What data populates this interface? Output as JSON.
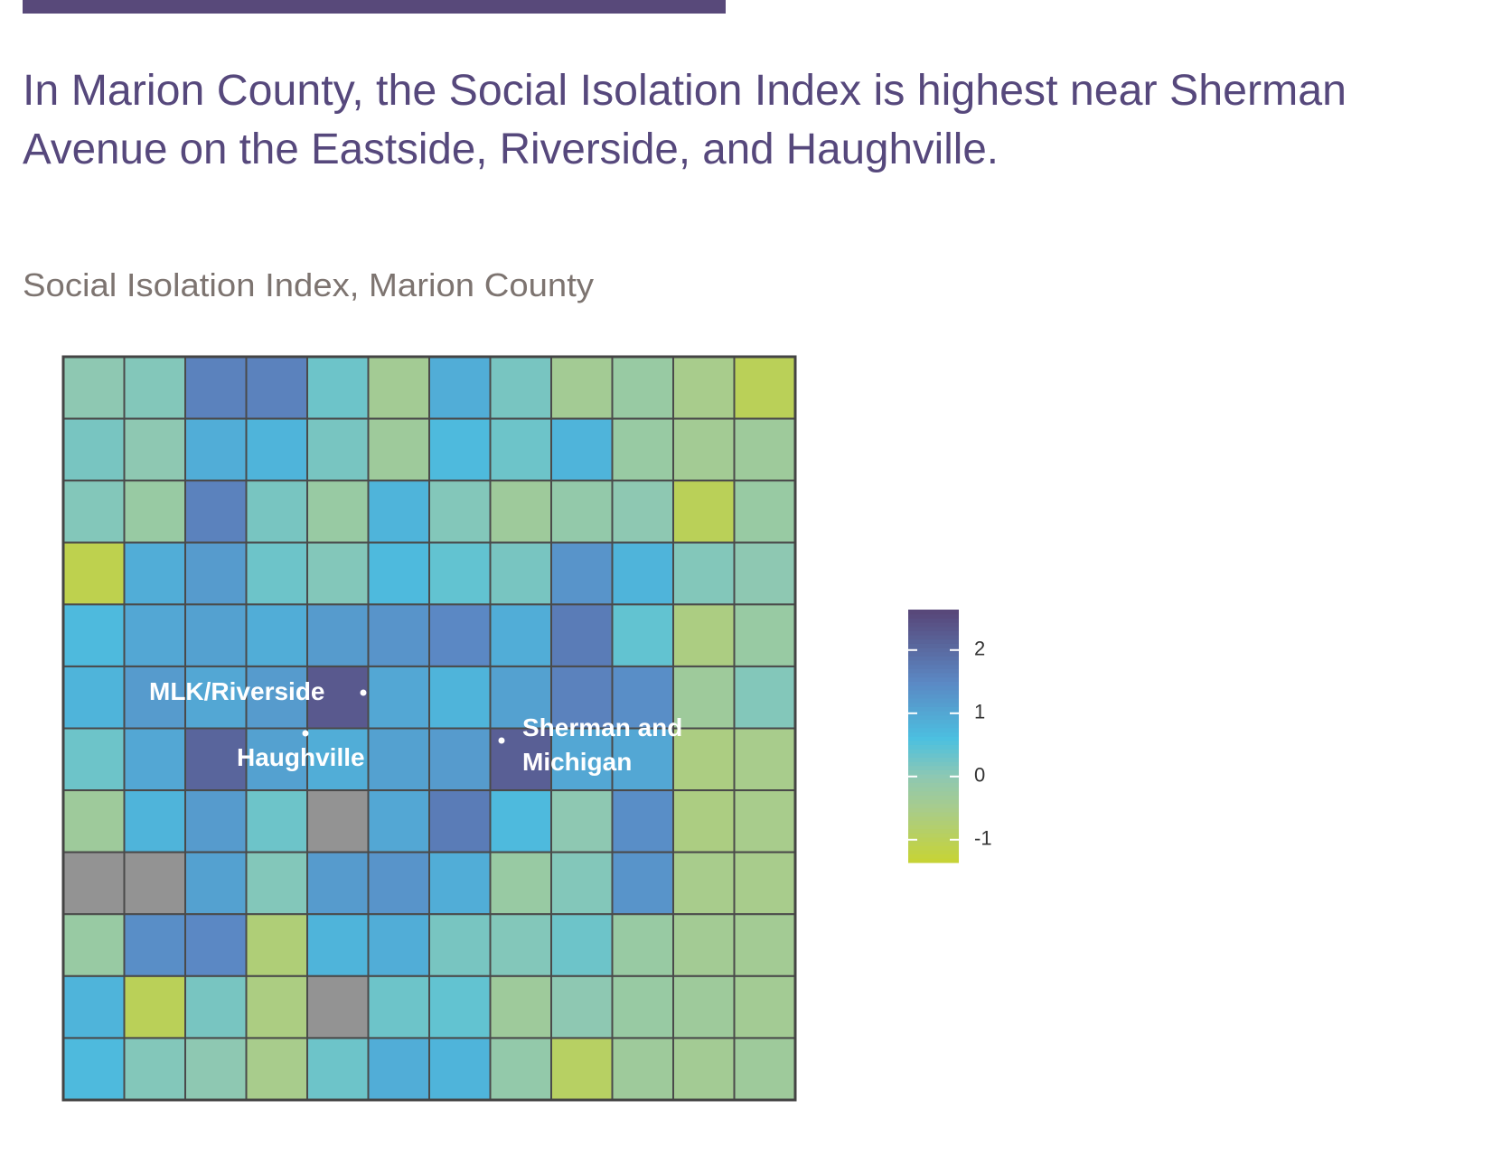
{
  "header": {
    "headline_lines": [
      "In Marion County, the Social Isolation Index is highest near Sherman",
      "Avenue on the Eastside, Riverside, and Haughville."
    ]
  },
  "chart_data": {
    "type": "choropleth",
    "title": "Social Isolation Index, Marion County",
    "tract_grid": {
      "rows": [
        [
          0,
          0.1,
          1.6,
          1.6,
          0.3,
          -0.4,
          0.9,
          0.2,
          -0.4,
          -0.2,
          -0.5,
          -1.0
        ],
        [
          0.2,
          0,
          0.9,
          0.8,
          0.2,
          -0.3,
          0.7,
          0.3,
          0.8,
          -0.2,
          -0.4,
          -0.3
        ],
        [
          0.1,
          -0.2,
          1.6,
          0.2,
          -0.2,
          0.8,
          0.1,
          -0.3,
          -0.1,
          0,
          -1.0,
          -0.2
        ],
        [
          -1.1,
          0.9,
          1.2,
          0.3,
          0.1,
          0.7,
          0.4,
          0.2,
          1.3,
          0.8,
          0.1,
          0
        ],
        [
          0.7,
          1.0,
          1.1,
          0.9,
          1.2,
          1.3,
          1.5,
          0.9,
          1.7,
          0.4,
          -0.6,
          -0.2
        ],
        [
          0.8,
          1.2,
          1.0,
          1.2,
          2.3,
          1.0,
          0.8,
          1.1,
          1.6,
          1.4,
          -0.3,
          0.1
        ],
        [
          0.3,
          1.0,
          2.1,
          1.1,
          0.9,
          1.1,
          1.2,
          2.2,
          1.0,
          1.0,
          -0.6,
          -0.5
        ],
        [
          -0.3,
          0.8,
          1.2,
          0.3,
          null,
          1.0,
          1.7,
          0.7,
          0,
          1.4,
          -0.6,
          -0.5
        ],
        [
          null,
          null,
          1.1,
          0.1,
          1.2,
          1.3,
          0.9,
          -0.2,
          0.1,
          1.3,
          -0.5,
          -0.5
        ],
        [
          -0.2,
          1.4,
          1.5,
          -0.7,
          0.8,
          0.9,
          0.2,
          0.1,
          0.3,
          -0.2,
          -0.4,
          -0.4
        ],
        [
          0.8,
          -1.0,
          0.2,
          -0.6,
          null,
          0.3,
          0.4,
          -0.3,
          0,
          -0.2,
          -0.3,
          -0.4
        ],
        [
          0.7,
          0.1,
          0,
          -0.5,
          0.3,
          0.9,
          0.8,
          -0.1,
          -0.9,
          -0.3,
          -0.4,
          -0.3
        ]
      ]
    },
    "no_data_color": "#939393",
    "colorscale": [
      [
        -1.4,
        "#c9d42f"
      ],
      [
        -0.5,
        "#a8cc8c"
      ],
      [
        0,
        "#8ec8b2"
      ],
      [
        0.6,
        "#4cc0e0"
      ],
      [
        1.5,
        "#5b88c4"
      ],
      [
        2.6,
        "#58487a"
      ]
    ],
    "legend": {
      "lim": [
        -1.36,
        2.64
      ],
      "ticks": [
        2,
        1,
        0,
        -1
      ]
    },
    "annotations": [
      {
        "lines": [
          "MLK/Riverside"
        ]
      },
      {
        "lines": [
          "Haughville"
        ]
      },
      {
        "lines": [
          "Sherman and",
          "Michigan"
        ]
      }
    ]
  }
}
